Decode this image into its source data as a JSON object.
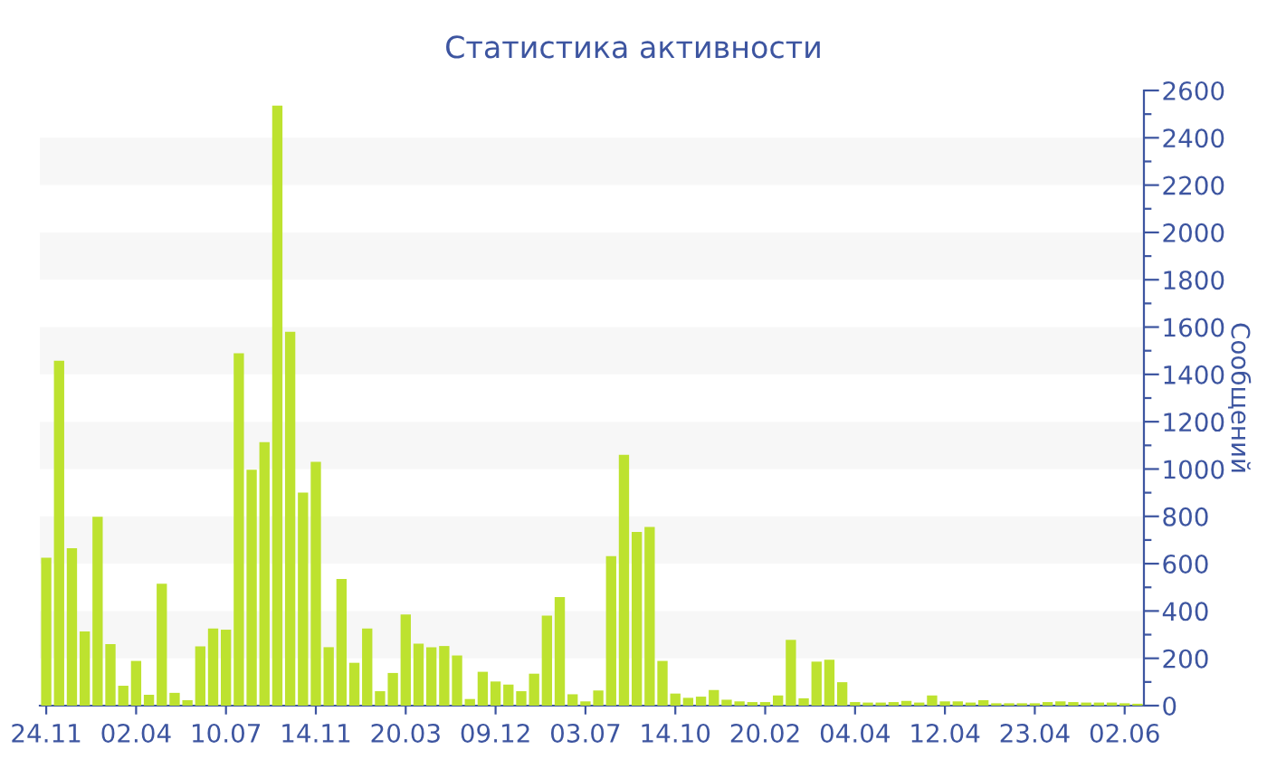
{
  "chart_data": {
    "type": "bar",
    "title": "Статистика активности",
    "ylabel": "Сообщений",
    "categories": [
      "24.11",
      null,
      null,
      null,
      null,
      null,
      null,
      "02.04",
      null,
      null,
      null,
      null,
      null,
      null,
      "10.07",
      null,
      null,
      null,
      null,
      null,
      null,
      "14.11",
      null,
      null,
      null,
      null,
      null,
      null,
      "20.03",
      null,
      null,
      null,
      null,
      null,
      null,
      "09.12",
      null,
      null,
      null,
      null,
      null,
      null,
      "03.07",
      null,
      null,
      null,
      null,
      null,
      null,
      "14.10",
      null,
      null,
      null,
      null,
      null,
      null,
      "20.02",
      null,
      null,
      null,
      null,
      null,
      null,
      "04.04",
      null,
      null,
      null,
      null,
      null,
      null,
      "12.04",
      null,
      null,
      null,
      null,
      null,
      null,
      "23.04",
      null,
      null,
      null,
      null,
      null,
      null,
      "02.06",
      null
    ],
    "values": [
      625,
      1458,
      665,
      314,
      798,
      260,
      84,
      189,
      46,
      515,
      54,
      23,
      250,
      326,
      321,
      1489,
      997,
      1114,
      2536,
      1580,
      900,
      1030,
      247,
      535,
      181,
      326,
      61,
      138,
      385,
      262,
      247,
      252,
      212,
      28,
      143,
      102,
      89,
      61,
      135,
      380,
      459,
      48,
      18,
      64,
      632,
      1060,
      734,
      755,
      189,
      51,
      33,
      38,
      66,
      25,
      18,
      15,
      15,
      43,
      278,
      31,
      186,
      194,
      99,
      15,
      13,
      13,
      15,
      20,
      13,
      43,
      18,
      18,
      13,
      23,
      10,
      10,
      10,
      10,
      15,
      18,
      15,
      13,
      13,
      13,
      10,
      8
    ],
    "color": "#bde22f",
    "ylim": [
      0,
      2600
    ],
    "yticks": [
      0,
      {
        "value": 100,
        "label": null
      },
      200,
      {
        "value": 300,
        "label": null
      },
      400,
      {
        "value": 500,
        "label": null
      },
      600,
      {
        "value": 700,
        "label": null
      },
      800,
      {
        "value": 900,
        "label": null
      },
      1000,
      {
        "value": 1100,
        "label": null
      },
      1200,
      {
        "value": 1300,
        "label": null
      },
      1400,
      {
        "value": 1500,
        "label": null
      },
      1600,
      {
        "value": 1700,
        "label": null
      },
      1800,
      {
        "value": 1900,
        "label": null
      },
      2000,
      {
        "value": 2100,
        "label": null
      },
      2200,
      {
        "value": 2300,
        "label": null
      },
      2400,
      {
        "value": 2500,
        "label": null
      },
      2600
    ],
    "bands": [
      {
        "axis": "y",
        "from": 200,
        "to": 400,
        "color": "#f7f7f7"
      },
      {
        "axis": "y",
        "from": 600,
        "to": 800,
        "color": "#f7f7f7"
      },
      {
        "axis": "y",
        "from": 1000,
        "to": 1200,
        "color": "#f7f7f7"
      },
      {
        "axis": "y",
        "from": 1400,
        "to": 1600,
        "color": "#f7f7f7"
      },
      {
        "axis": "y",
        "from": 1800,
        "to": 2000,
        "color": "#f7f7f7"
      },
      {
        "axis": "y",
        "from": 2200,
        "to": 2400,
        "color": "#f7f7f7"
      }
    ],
    "grid": false,
    "legend": false
  }
}
